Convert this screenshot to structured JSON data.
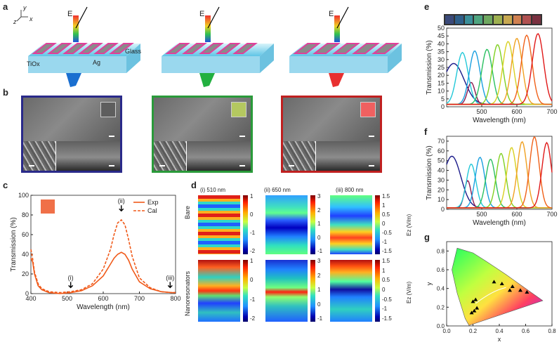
{
  "panels": {
    "a": "a",
    "b": "b",
    "c": "c",
    "d": "d",
    "e": "e",
    "f": "f",
    "g": "g"
  },
  "panel_a": {
    "axis_y": "y",
    "axis_z": "z",
    "axis_x": "x",
    "field_label": "E",
    "label_tiox": "TiOx",
    "label_ag": "Ag",
    "label_glass": "Glass",
    "arrow_colors": [
      "#1a6fd0",
      "#22b040",
      "#e83030"
    ]
  },
  "chart_data": [
    {
      "id": "c",
      "type": "line",
      "xlabel": "Wavelength (nm)",
      "ylabel": "Transmission (%)",
      "xlim": [
        400,
        800
      ],
      "ylim": [
        0,
        100
      ],
      "xticks": [
        "400",
        "500",
        "600",
        "700",
        "800"
      ],
      "yticks": [
        "0",
        "20",
        "40",
        "60",
        "80",
        "100"
      ],
      "legend": [
        "Exp",
        "Cal"
      ],
      "annotations": [
        {
          "label": "(i)",
          "x": 510
        },
        {
          "label": "(ii)",
          "x": 650
        },
        {
          "label": "(iii)",
          "x": 785
        }
      ],
      "series": [
        {
          "name": "Exp",
          "style": "solid",
          "x": [
            400,
            405,
            410,
            420,
            430,
            450,
            480,
            510,
            540,
            570,
            600,
            620,
            630,
            640,
            650,
            660,
            670,
            680,
            700,
            730,
            760,
            790,
            800
          ],
          "y": [
            36,
            32,
            20,
            8,
            4,
            1,
            0,
            1,
            3,
            8,
            18,
            30,
            36,
            40,
            42,
            40,
            34,
            25,
            12,
            5,
            2,
            1,
            1
          ]
        },
        {
          "name": "Cal",
          "style": "dashed",
          "x": [
            400,
            405,
            410,
            420,
            430,
            450,
            480,
            510,
            540,
            570,
            600,
            620,
            630,
            640,
            650,
            660,
            670,
            680,
            700,
            730,
            760,
            790,
            800
          ],
          "y": [
            45,
            35,
            22,
            10,
            5,
            2,
            1,
            2,
            4,
            10,
            25,
            45,
            60,
            72,
            75,
            70,
            55,
            38,
            16,
            6,
            2,
            1,
            1
          ]
        }
      ]
    },
    {
      "id": "e",
      "type": "line",
      "xlabel": "Wavelength (nm)",
      "ylabel": "Transmission (%)",
      "xlim": [
        400,
        700
      ],
      "ylim": [
        0,
        50
      ],
      "xticks": [
        "500",
        "600",
        "700"
      ],
      "yticks": [
        "0",
        "5",
        "10",
        "15",
        "20",
        "25",
        "30",
        "35",
        "40",
        "45",
        "50"
      ],
      "swatches": [
        "#3b4a7a",
        "#2f5f8a",
        "#3b8f9a",
        "#4fa580",
        "#6fa860",
        "#9eb050",
        "#c7a850",
        "#d08050",
        "#b05050",
        "#7a3040"
      ],
      "series": [
        {
          "name": "s1",
          "color": "#1a1a8a",
          "peak": 420,
          "height": 26,
          "width": 70
        },
        {
          "name": "s2",
          "color": "#8a1a50",
          "peak": 470,
          "height": 14,
          "width": 25
        },
        {
          "name": "s3",
          "color": "#22c8d8",
          "peak": 445,
          "height": 33,
          "width": 38
        },
        {
          "name": "s4",
          "color": "#1aa0e0",
          "peak": 480,
          "height": 34,
          "width": 36
        },
        {
          "name": "s5",
          "color": "#2ac060",
          "peak": 515,
          "height": 35,
          "width": 36
        },
        {
          "name": "s6",
          "color": "#80d020",
          "peak": 545,
          "height": 38,
          "width": 36
        },
        {
          "name": "s7",
          "color": "#d8d020",
          "peak": 575,
          "height": 40,
          "width": 36
        },
        {
          "name": "s8",
          "color": "#f0a020",
          "peak": 600,
          "height": 42,
          "width": 36
        },
        {
          "name": "s9",
          "color": "#f06018",
          "peak": 628,
          "height": 44,
          "width": 36
        },
        {
          "name": "s10",
          "color": "#e01818",
          "peak": 660,
          "height": 45,
          "width": 38
        }
      ]
    },
    {
      "id": "f",
      "type": "line",
      "xlabel": "Wavelength (nm)",
      "ylabel": "Transmission (%)",
      "xlim": [
        400,
        700
      ],
      "ylim": [
        0,
        75
      ],
      "xticks": [
        "500",
        "600",
        "700"
      ],
      "yticks": [
        "0",
        "10",
        "20",
        "30",
        "40",
        "50",
        "60",
        "70"
      ],
      "series": [
        {
          "name": "s1",
          "color": "#1a1a8a",
          "peak": 415,
          "height": 53,
          "width": 60
        },
        {
          "name": "s2",
          "color": "#8a1a50",
          "peak": 460,
          "height": 28,
          "width": 22
        },
        {
          "name": "s3",
          "color": "#22c8d8",
          "peak": 470,
          "height": 45,
          "width": 32
        },
        {
          "name": "s4",
          "color": "#1aa0e0",
          "peak": 495,
          "height": 52,
          "width": 32
        },
        {
          "name": "s5",
          "color": "#2ac060",
          "peak": 525,
          "height": 50,
          "width": 32
        },
        {
          "name": "s6",
          "color": "#80d020",
          "peak": 555,
          "height": 56,
          "width": 32
        },
        {
          "name": "s7",
          "color": "#d8d020",
          "peak": 585,
          "height": 62,
          "width": 32
        },
        {
          "name": "s8",
          "color": "#f0a020",
          "peak": 615,
          "height": 68,
          "width": 32
        },
        {
          "name": "s9",
          "color": "#f06018",
          "peak": 650,
          "height": 73,
          "width": 32
        },
        {
          "name": "s10",
          "color": "#e01818",
          "peak": 685,
          "height": 67,
          "width": 32
        }
      ]
    },
    {
      "id": "g",
      "type": "scatter",
      "xlabel": "x",
      "ylabel": "y",
      "xlim": [
        0,
        0.8
      ],
      "ylim": [
        0,
        0.9
      ],
      "xticks": [
        "0.0",
        "0.2",
        "0.4",
        "0.6",
        "0.8"
      ],
      "yticks": [
        "0.0",
        "0.2",
        "0.4",
        "0.6",
        "0.8"
      ],
      "points": [
        {
          "x": 0.19,
          "y": 0.14
        },
        {
          "x": 0.21,
          "y": 0.16
        },
        {
          "x": 0.2,
          "y": 0.26
        },
        {
          "x": 0.22,
          "y": 0.28
        },
        {
          "x": 0.23,
          "y": 0.19
        },
        {
          "x": 0.36,
          "y": 0.47
        },
        {
          "x": 0.42,
          "y": 0.45
        },
        {
          "x": 0.5,
          "y": 0.42
        },
        {
          "x": 0.56,
          "y": 0.38
        },
        {
          "x": 0.61,
          "y": 0.36
        },
        {
          "x": 0.48,
          "y": 0.38
        }
      ]
    }
  ],
  "panel_d": {
    "headers": [
      "(i) 510 nm",
      "(ii) 650 nm",
      "(iii) 800 nm"
    ],
    "row_labels": [
      "Bare",
      "Nanoresonators"
    ],
    "cbar_label": "Ez (V/m)",
    "top_ticks": [
      [
        "1",
        "0",
        "-1",
        "-2"
      ],
      [
        "3",
        "2",
        "1",
        "0",
        "-1"
      ],
      [
        "1.5",
        "1",
        "0.5",
        "0",
        "-0.5",
        "-1",
        "-1.5"
      ]
    ],
    "bottom_ticks": [
      [
        "1",
        "0",
        "-1",
        "-2"
      ],
      [
        "3",
        "2",
        "1",
        "0",
        "-1"
      ],
      [
        "1.5",
        "1",
        "0.5",
        "0",
        "-0.5",
        "-1",
        "-1.5"
      ]
    ]
  },
  "panel_b": {
    "frame_colors": [
      "#2a2a8a",
      "#2a9a3a",
      "#c02020"
    ],
    "inset_colors": [
      "#5e5e5e",
      "#b4c860",
      "#f06060"
    ]
  },
  "panel_c_inset_color": "#f07048"
}
